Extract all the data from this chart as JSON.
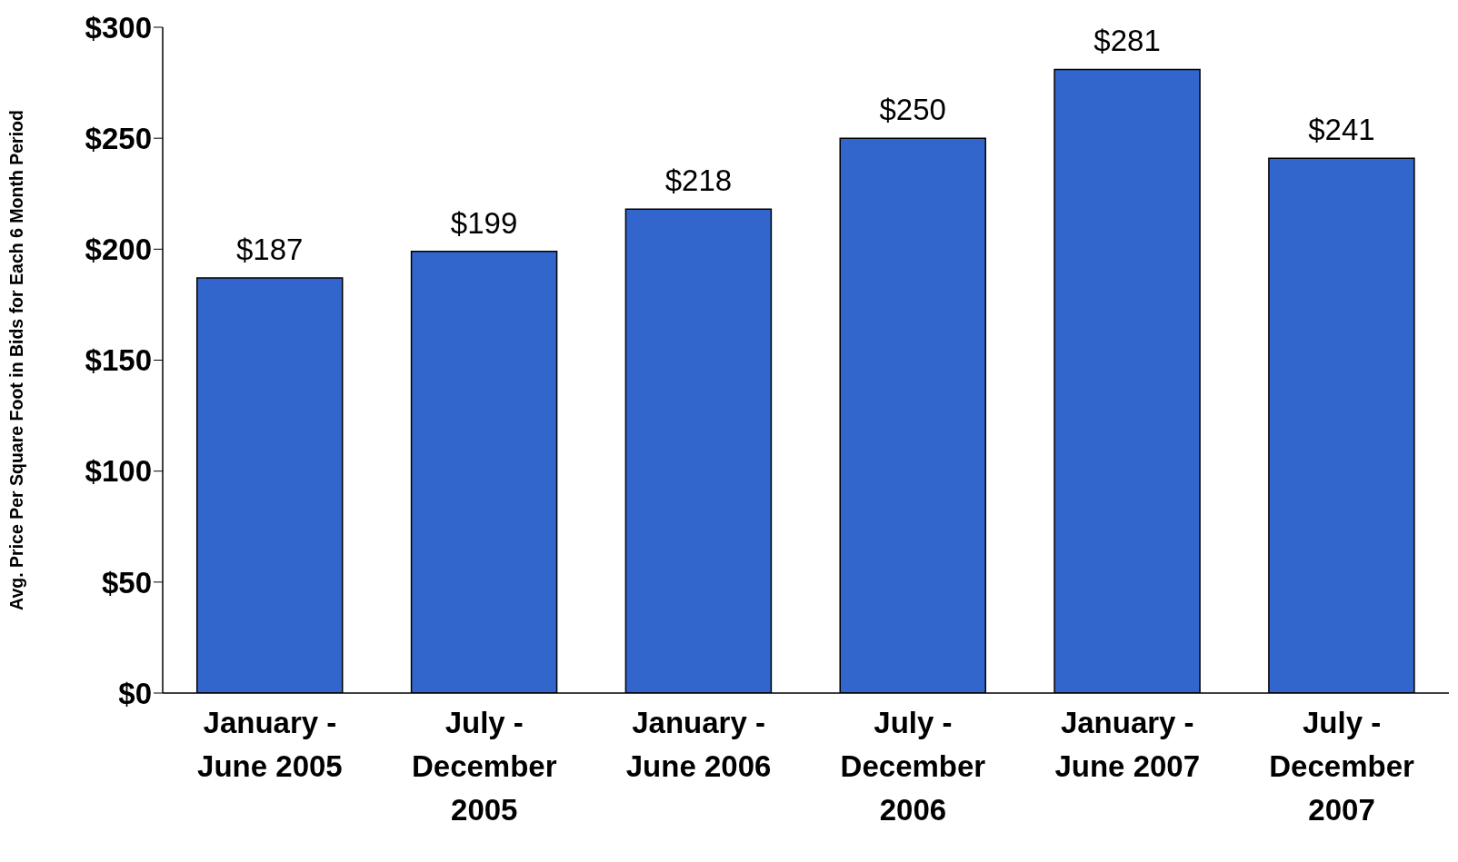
{
  "chart_data": {
    "type": "bar",
    "ylabel": "Avg. Price Per Square Foot in Bids for Each 6 Month Period",
    "categories": [
      "January - June 2005",
      "July - December 2005",
      "January - June 2006",
      "July - December 2006",
      "January - June 2007",
      "July - December 2007"
    ],
    "values": [
      187,
      199,
      218,
      250,
      281,
      241
    ],
    "value_labels": [
      "$187",
      "$199",
      "$218",
      "$250",
      "$281",
      "$241"
    ],
    "color": "#3366cc",
    "ylim": [
      0,
      300
    ],
    "yticks": [
      {
        "value": 0,
        "label": "$0"
      },
      {
        "value": 50,
        "label": "$50"
      },
      {
        "value": 100,
        "label": "$100"
      },
      {
        "value": 150,
        "label": "$150"
      },
      {
        "value": 200,
        "label": "$200"
      },
      {
        "value": 250,
        "label": "$250"
      },
      {
        "value": 300,
        "label": "$300"
      }
    ],
    "grid": false,
    "legend": false
  }
}
